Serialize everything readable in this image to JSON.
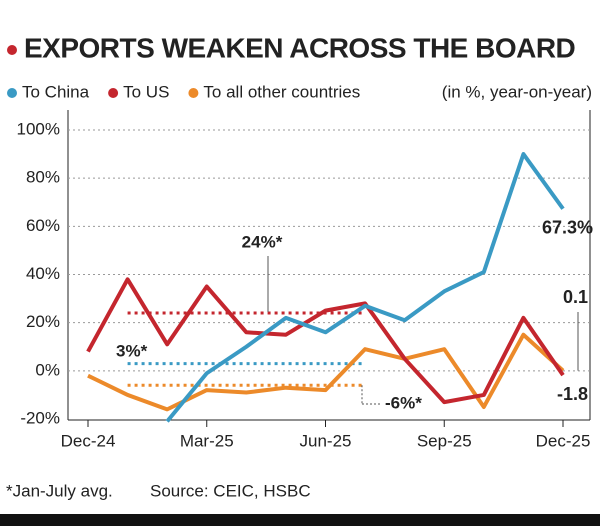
{
  "chart_data": {
    "type": "line",
    "title": "EXPORTS WEAKEN ACROSS THE BOARD",
    "subtitle": "(in %, year-on-year)",
    "categories": [
      "Dec-24",
      null,
      null,
      "Mar-25",
      null,
      null,
      "Jun-25",
      null,
      null,
      "Sep-25",
      null,
      null,
      "Dec-25"
    ],
    "series": [
      {
        "name": "To China",
        "color": "#3a9ac4",
        "values": [
          null,
          null,
          -21,
          -1,
          10,
          22,
          16,
          27,
          21,
          33,
          41,
          90,
          67.3
        ],
        "value_labels": [
          null,
          null,
          null,
          null,
          null,
          null,
          null,
          null,
          null,
          null,
          null,
          null,
          "67.3%"
        ]
      },
      {
        "name": "To US",
        "color": "#c4262e",
        "values": [
          8,
          38,
          11,
          35,
          16,
          15,
          25,
          28,
          5,
          -13,
          -10,
          22,
          -1.8
        ]
      },
      {
        "name": "To all other countries",
        "color": "#ec8a2a",
        "values": [
          -2,
          -10,
          -16,
          -8,
          -9,
          -7,
          -8,
          9,
          5,
          9,
          -15,
          15,
          0.1
        ]
      }
    ],
    "annotations": [
      {
        "label": "24%*",
        "value": 24,
        "series": 1
      },
      {
        "label": "3%*",
        "value": 3,
        "series": 0
      },
      {
        "label": "-6%*",
        "value": -6,
        "series": 2
      }
    ],
    "ylim": [
      -20,
      100
    ],
    "yticks": [
      {
        "value": -20,
        "label": "-20%"
      },
      {
        "value": 0,
        "label": "0%"
      },
      {
        "value": 20,
        "label": "20%"
      },
      {
        "value": 40,
        "label": "40%"
      },
      {
        "value": 60,
        "label": "60%"
      },
      {
        "value": 80,
        "label": "80%"
      },
      {
        "value": 100,
        "label": "100%"
      }
    ],
    "grid": true,
    "footnote": "*Jan-July avg.",
    "source": "Source: CEIC, HSBC"
  }
}
